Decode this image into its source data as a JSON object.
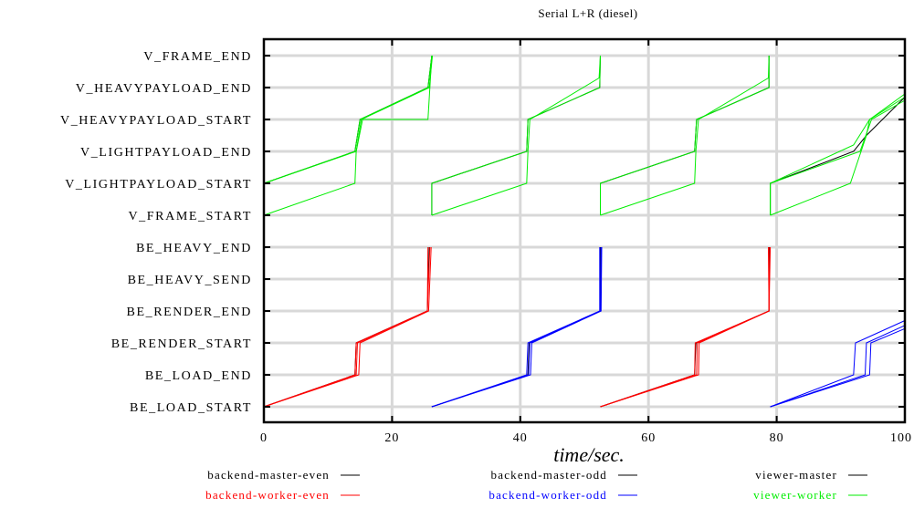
{
  "chart_data": {
    "type": "line",
    "title": "Serial L+R (diesel)",
    "xlabel": "time/sec.",
    "ylabel": "",
    "xlim": [
      0,
      100
    ],
    "x_ticks": [
      0,
      20,
      40,
      60,
      80,
      100
    ],
    "grid": true,
    "y_categories": [
      "BE_LOAD_START",
      "BE_LOAD_END",
      "BE_RENDER_START",
      "BE_RENDER_END",
      "BE_HEAVY_SEND",
      "BE_HEAVY_END",
      "V_FRAME_START",
      "V_LIGHTPAYLOAD_START",
      "V_LIGHTPAYLOAD_END",
      "V_HEAVYPAYLOAD_START",
      "V_HEAVYPAYLOAD_END",
      "V_FRAME_END"
    ],
    "legend": {
      "placement": "bottom",
      "entries": [
        {
          "name": "backend-master-even",
          "color": "#000000"
        },
        {
          "name": "backend-master-odd",
          "color": "#000000"
        },
        {
          "name": "viewer-master",
          "color": "#000000"
        },
        {
          "name": "backend-worker-even",
          "color": "#ff0000"
        },
        {
          "name": "backend-worker-odd",
          "color": "#0000ff"
        },
        {
          "name": "viewer-worker",
          "color": "#00ee00"
        }
      ]
    },
    "series": [
      {
        "name": "backend-master-even",
        "color": "#000000",
        "lines": [
          [
            [
              0,
              0
            ],
            [
              14.2,
              1
            ],
            [
              14.4,
              2
            ],
            [
              25.5,
              3
            ],
            [
              25.8,
              5
            ]
          ],
          [
            [
              52.5,
              0
            ],
            [
              67.2,
              1
            ],
            [
              67.4,
              2
            ],
            [
              78.8,
              3
            ],
            [
              78.8,
              5
            ]
          ]
        ]
      },
      {
        "name": "backend-worker-even",
        "color": "#ff0000",
        "lines": [
          [
            [
              0,
              0
            ],
            [
              14.2,
              1
            ],
            [
              14.4,
              2
            ],
            [
              25.5,
              3
            ],
            [
              25.6,
              5
            ]
          ],
          [
            [
              0,
              0
            ],
            [
              14.4,
              1
            ],
            [
              14.6,
              2
            ],
            [
              25.5,
              3
            ],
            [
              25.9,
              5
            ]
          ],
          [
            [
              0,
              0
            ],
            [
              14.8,
              1
            ],
            [
              15,
              2
            ],
            [
              25.7,
              3
            ],
            [
              26.1,
              5
            ]
          ],
          [
            [
              52.5,
              0
            ],
            [
              67.2,
              1
            ],
            [
              67.3,
              2
            ],
            [
              78.8,
              3
            ],
            [
              78.7,
              5
            ]
          ],
          [
            [
              52.5,
              0
            ],
            [
              67.5,
              1
            ],
            [
              67.6,
              2
            ],
            [
              78.8,
              3
            ],
            [
              78.9,
              5
            ]
          ],
          [
            [
              52.5,
              0
            ],
            [
              67.8,
              1
            ],
            [
              67.9,
              2
            ],
            [
              78.8,
              3
            ],
            [
              79,
              5
            ]
          ]
        ]
      },
      {
        "name": "backend-master-odd",
        "color": "#000000",
        "lines": [
          [
            [
              26.2,
              0
            ],
            [
              41.2,
              1
            ],
            [
              41.4,
              2
            ],
            [
              52.5,
              3
            ],
            [
              52.5,
              5
            ]
          ]
        ]
      },
      {
        "name": "backend-worker-odd",
        "color": "#0000ff",
        "lines": [
          [
            [
              26.2,
              0
            ],
            [
              41,
              1
            ],
            [
              41.2,
              2
            ],
            [
              52.4,
              3
            ],
            [
              52.4,
              5
            ]
          ],
          [
            [
              26.2,
              0
            ],
            [
              41.3,
              1
            ],
            [
              41.5,
              2
            ],
            [
              52.5,
              3
            ],
            [
              52.6,
              5
            ]
          ],
          [
            [
              26.2,
              0
            ],
            [
              41.6,
              1
            ],
            [
              41.8,
              2
            ],
            [
              52.6,
              3
            ],
            [
              52.7,
              5
            ]
          ],
          [
            [
              79,
              0
            ],
            [
              92,
              1
            ],
            [
              92.3,
              2
            ],
            [
              100,
              2.7
            ]
          ],
          [
            [
              79,
              0
            ],
            [
              93.8,
              1
            ],
            [
              94,
              2
            ],
            [
              100,
              2.55
            ]
          ],
          [
            [
              79,
              0
            ],
            [
              94.5,
              1
            ],
            [
              94.7,
              2
            ],
            [
              100,
              2.45
            ]
          ]
        ]
      },
      {
        "name": "viewer-master",
        "color": "#000000",
        "lines": [
          [
            [
              0,
              7
            ],
            [
              14.2,
              8
            ],
            [
              15,
              9
            ],
            [
              25.6,
              10
            ],
            [
              26.2,
              11
            ]
          ],
          [
            [
              26.2,
              6
            ],
            [
              26.2,
              7
            ],
            [
              41,
              8
            ],
            [
              41.2,
              9
            ],
            [
              52.4,
              10
            ],
            [
              52.5,
              11
            ]
          ],
          [
            [
              52.5,
              6
            ],
            [
              52.5,
              7
            ],
            [
              67.2,
              8
            ],
            [
              67.5,
              9
            ],
            [
              78.8,
              10
            ],
            [
              78.8,
              11
            ]
          ],
          [
            [
              79,
              6
            ],
            [
              79,
              7
            ],
            [
              92,
              8
            ],
            [
              94,
              8.5
            ],
            [
              100,
              9.7
            ]
          ]
        ]
      },
      {
        "name": "viewer-worker",
        "color": "#00ee00",
        "lines": [
          [
            [
              0,
              7
            ],
            [
              14.2,
              8
            ],
            [
              15,
              9
            ],
            [
              25.6,
              10
            ],
            [
              26.2,
              11
            ]
          ],
          [
            [
              0,
              7
            ],
            [
              14.4,
              8
            ],
            [
              15.2,
              9
            ],
            [
              25.8,
              10
            ],
            [
              26.3,
              11
            ]
          ],
          [
            [
              0,
              6
            ],
            [
              14.2,
              7
            ],
            [
              14.4,
              8
            ],
            [
              15.4,
              9
            ],
            [
              25.6,
              9
            ],
            [
              26.2,
              11
            ]
          ],
          [
            [
              26.2,
              6
            ],
            [
              26.2,
              7
            ],
            [
              41,
              8
            ],
            [
              41.2,
              9
            ],
            [
              52.4,
              10
            ],
            [
              52.5,
              11
            ]
          ],
          [
            [
              26.2,
              6
            ],
            [
              41,
              7
            ],
            [
              41.2,
              8
            ],
            [
              41.5,
              9
            ],
            [
              52.3,
              10.3
            ],
            [
              52.5,
              11
            ]
          ],
          [
            [
              52.5,
              6
            ],
            [
              52.5,
              7
            ],
            [
              67.2,
              8
            ],
            [
              67.5,
              9
            ],
            [
              78.8,
              10
            ],
            [
              78.8,
              11
            ]
          ],
          [
            [
              52.5,
              6
            ],
            [
              67.2,
              7
            ],
            [
              67.4,
              8
            ],
            [
              67.8,
              9
            ],
            [
              78.7,
              10.3
            ],
            [
              78.8,
              11
            ]
          ],
          [
            [
              79,
              6
            ],
            [
              79,
              7
            ],
            [
              92,
              8.2
            ],
            [
              94.5,
              9
            ],
            [
              100,
              9.7
            ]
          ],
          [
            [
              79,
              6
            ],
            [
              91.5,
              7
            ],
            [
              94,
              8.5
            ],
            [
              94.5,
              9
            ],
            [
              100,
              9.8
            ]
          ],
          [
            [
              79,
              6
            ],
            [
              79,
              7
            ],
            [
              93,
              8
            ],
            [
              94.8,
              9
            ],
            [
              100,
              9.6
            ]
          ]
        ]
      }
    ]
  }
}
